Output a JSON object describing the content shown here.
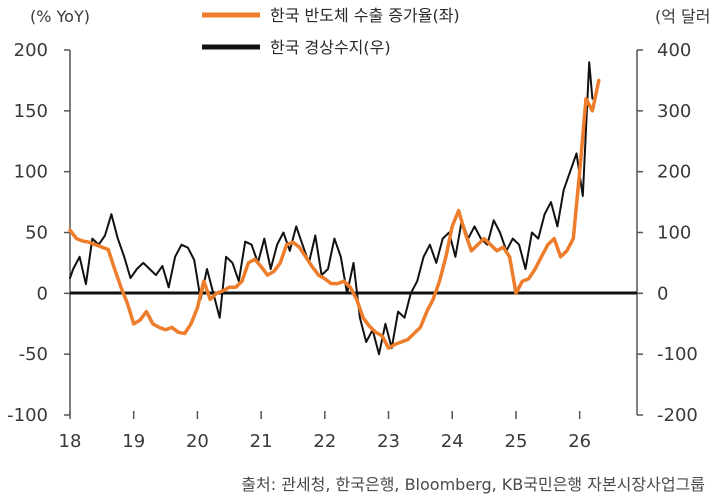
{
  "chart_data": {
    "type": "line",
    "left_unit": "(% YoY)",
    "right_unit": "(억 달러)",
    "left_ticks": [
      "200",
      "150",
      "100",
      "50",
      "0",
      "-50",
      "-100"
    ],
    "right_ticks": [
      "400",
      "300",
      "200",
      "100",
      "0",
      "-100",
      "-200"
    ],
    "x_ticks": [
      "18",
      "19",
      "20",
      "21",
      "22",
      "23",
      "24",
      "25",
      "26"
    ],
    "left_ylim": [
      -100,
      200
    ],
    "right_ylim": [
      -200,
      400
    ],
    "xlim": [
      18,
      26.9
    ],
    "legend": [
      {
        "label": "한국 반도체 수출 증가율(좌)",
        "color": "#ee7d2b"
      },
      {
        "label": "한국 경상수지(우)",
        "color": "#111111"
      }
    ],
    "source": "출처: 관세청, 한국은행, Bloomberg, KB국민은행 자본시장사업그룹",
    "series": [
      {
        "name": "한국 반도체 수출 증가율(좌)",
        "axis": "left",
        "color": "#ee7d2b",
        "x": [
          18.0,
          18.1,
          18.2,
          18.3,
          18.5,
          18.6,
          18.7,
          18.8,
          18.9,
          19.0,
          19.1,
          19.2,
          19.3,
          19.4,
          19.5,
          19.6,
          19.7,
          19.8,
          19.9,
          20.0,
          20.1,
          20.2,
          20.3,
          20.4,
          20.5,
          20.6,
          20.7,
          20.8,
          20.9,
          21.0,
          21.1,
          21.2,
          21.3,
          21.4,
          21.5,
          21.6,
          21.7,
          21.8,
          21.9,
          22.0,
          22.1,
          22.2,
          22.3,
          22.4,
          22.5,
          22.6,
          22.7,
          22.8,
          22.9,
          23.0,
          23.1,
          23.2,
          23.3,
          23.4,
          23.5,
          23.6,
          23.7,
          23.8,
          23.9,
          24.0,
          24.1,
          24.2,
          24.3,
          24.4,
          24.5,
          24.6,
          24.7,
          24.8,
          24.9,
          25.0,
          25.1,
          25.2,
          25.3,
          25.4,
          25.5,
          25.6,
          25.7,
          25.8,
          25.9,
          26.0,
          26.1,
          26.2,
          26.3
        ],
        "values": [
          52,
          45,
          43,
          42,
          38,
          36,
          20,
          5,
          -8,
          -25,
          -22,
          -15,
          -25,
          -28,
          -30,
          -28,
          -32,
          -33,
          -25,
          -12,
          10,
          -5,
          0,
          2,
          5,
          5,
          10,
          25,
          28,
          22,
          15,
          18,
          25,
          40,
          42,
          38,
          30,
          22,
          15,
          12,
          8,
          8,
          10,
          5,
          -5,
          -20,
          -27,
          -32,
          -35,
          -45,
          -42,
          -40,
          -38,
          -33,
          -28,
          -15,
          -5,
          10,
          30,
          55,
          68,
          50,
          35,
          40,
          45,
          40,
          35,
          38,
          30,
          0,
          10,
          12,
          20,
          30,
          40,
          45,
          30,
          35,
          45,
          100,
          160,
          150,
          175
        ]
      },
      {
        "name": "한국 경상수지(우)",
        "axis": "right",
        "color": "#111111",
        "x": [
          18.0,
          18.05,
          18.15,
          18.25,
          18.35,
          18.45,
          18.55,
          18.65,
          18.75,
          18.85,
          18.95,
          19.05,
          19.15,
          19.25,
          19.35,
          19.45,
          19.55,
          19.65,
          19.75,
          19.85,
          19.95,
          20.05,
          20.15,
          20.25,
          20.35,
          20.45,
          20.55,
          20.65,
          20.75,
          20.85,
          20.95,
          21.05,
          21.15,
          21.25,
          21.35,
          21.45,
          21.55,
          21.65,
          21.75,
          21.85,
          21.95,
          22.05,
          22.15,
          22.25,
          22.35,
          22.45,
          22.55,
          22.65,
          22.75,
          22.85,
          22.95,
          23.05,
          23.15,
          23.25,
          23.35,
          23.45,
          23.55,
          23.65,
          23.75,
          23.85,
          23.95,
          24.05,
          24.15,
          24.25,
          24.35,
          24.45,
          24.55,
          24.65,
          24.75,
          24.85,
          24.95,
          25.05,
          25.15,
          25.25,
          25.35,
          25.45,
          25.55,
          25.65,
          25.75,
          25.85,
          25.95,
          26.05,
          26.15,
          26.2
        ],
        "values": [
          25,
          40,
          60,
          15,
          90,
          80,
          95,
          130,
          90,
          60,
          25,
          40,
          50,
          40,
          30,
          45,
          10,
          60,
          80,
          75,
          55,
          -10,
          40,
          0,
          -40,
          60,
          50,
          20,
          85,
          80,
          50,
          90,
          40,
          80,
          100,
          70,
          110,
          80,
          50,
          95,
          30,
          40,
          90,
          60,
          0,
          50,
          -40,
          -80,
          -60,
          -100,
          -50,
          -90,
          -30,
          -40,
          0,
          20,
          60,
          80,
          50,
          90,
          100,
          60,
          120,
          90,
          110,
          90,
          80,
          120,
          100,
          70,
          90,
          80,
          40,
          100,
          90,
          130,
          150,
          110,
          170,
          200,
          230,
          160,
          380,
          320
        ]
      }
    ]
  }
}
